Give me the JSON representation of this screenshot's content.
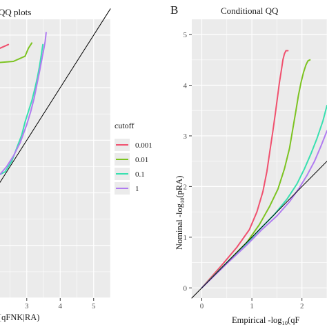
{
  "chart_data": [
    {
      "type": "line",
      "panel_letter": "",
      "title": "QQ plots",
      "xlabel": "[qFNK|RA)",
      "ylabel": "",
      "xticks": [
        "3",
        "4",
        "5"
      ],
      "xlim": [
        2.2,
        5.5
      ],
      "ylim": [
        0,
        5.3
      ],
      "grid": true,
      "background": "#ebebeb",
      "series": [
        {
          "name": "0.001",
          "color": "#f0506e",
          "x": [
            2.2,
            2.45
          ],
          "y": [
            4.75,
            4.82
          ]
        },
        {
          "name": "0.01",
          "color": "#7cc321",
          "x": [
            2.2,
            2.6,
            2.95,
            3.05,
            3.15
          ],
          "y": [
            4.48,
            4.5,
            4.6,
            4.75,
            4.85
          ]
        },
        {
          "name": "0.1",
          "color": "#38e0b0",
          "x": [
            2.2,
            2.35,
            2.55,
            2.7,
            2.85,
            2.95,
            3.05,
            3.15,
            3.25,
            3.32,
            3.38,
            3.43,
            3.48
          ],
          "y": [
            2.35,
            2.4,
            2.6,
            2.85,
            3.1,
            3.35,
            3.55,
            3.75,
            4.0,
            4.2,
            4.4,
            4.6,
            4.82
          ]
        },
        {
          "name": "1",
          "color": "#b07cf0",
          "x": [
            2.2,
            2.4,
            2.6,
            2.8,
            3.0,
            3.12,
            3.22,
            3.3,
            3.38,
            3.44,
            3.5,
            3.55,
            3.58
          ],
          "y": [
            2.35,
            2.5,
            2.7,
            2.95,
            3.3,
            3.55,
            3.8,
            4.05,
            4.3,
            4.5,
            4.7,
            4.88,
            5.05
          ]
        },
        {
          "name": "reference",
          "color": "#000000",
          "x": [
            2.2,
            5.5
          ],
          "y": [
            2.2,
            5.5
          ]
        }
      ]
    },
    {
      "type": "line",
      "panel_letter": "B",
      "title": "Conditional  QQ",
      "xlabel": "Empirical -log",
      "xlabel_sub": "10",
      "xlabel_tail": "(qF",
      "ylabel": "Nominal -log",
      "ylabel_sub": "10",
      "ylabel_tail": "(pRA)",
      "xticks": [
        "0",
        "1",
        "2"
      ],
      "yticks": [
        "0",
        "1",
        "2",
        "3",
        "4",
        "5"
      ],
      "xlim": [
        -0.2,
        2.5
      ],
      "ylim": [
        -0.2,
        5.3
      ],
      "grid": true,
      "background": "#ebebeb",
      "series": [
        {
          "name": "0.001",
          "color": "#f0506e",
          "x": [
            0,
            0.4,
            0.7,
            0.95,
            1.1,
            1.22,
            1.3,
            1.36,
            1.42,
            1.47,
            1.51,
            1.55,
            1.59,
            1.62,
            1.65,
            1.68,
            1.72
          ],
          "y": [
            0,
            0.45,
            0.8,
            1.15,
            1.5,
            1.9,
            2.3,
            2.7,
            3.1,
            3.45,
            3.75,
            4.05,
            4.3,
            4.5,
            4.62,
            4.68,
            4.68
          ]
        },
        {
          "name": "0.01",
          "color": "#7cc321",
          "x": [
            0,
            0.5,
            0.9,
            1.15,
            1.35,
            1.52,
            1.65,
            1.75,
            1.82,
            1.88,
            1.93,
            1.98,
            2.03,
            2.08,
            2.12,
            2.16
          ],
          "y": [
            0,
            0.5,
            0.9,
            1.25,
            1.6,
            1.95,
            2.35,
            2.75,
            3.15,
            3.5,
            3.8,
            4.05,
            4.25,
            4.4,
            4.48,
            4.5
          ]
        },
        {
          "name": "0.1",
          "color": "#38e0b0",
          "x": [
            0,
            0.5,
            0.9,
            1.2,
            1.45,
            1.7,
            1.9,
            2.05,
            2.18,
            2.3,
            2.42,
            2.5
          ],
          "y": [
            0,
            0.5,
            0.88,
            1.2,
            1.45,
            1.75,
            2.05,
            2.35,
            2.65,
            2.95,
            3.3,
            3.6
          ]
        },
        {
          "name": "1",
          "color": "#b07cf0",
          "x": [
            0,
            0.5,
            0.9,
            1.2,
            1.5,
            1.75,
            1.95,
            2.1,
            2.25,
            2.38,
            2.5
          ],
          "y": [
            0,
            0.48,
            0.85,
            1.15,
            1.42,
            1.7,
            1.98,
            2.22,
            2.5,
            2.8,
            3.1
          ]
        },
        {
          "name": "reference",
          "color": "#000000",
          "x": [
            -0.2,
            2.5
          ],
          "y": [
            -0.2,
            2.5
          ]
        }
      ]
    }
  ],
  "legend": {
    "title": "cutoff",
    "placement": "between-panels",
    "items": [
      {
        "label": "0.001",
        "color": "#f0506e"
      },
      {
        "label": "0.01",
        "color": "#7cc321"
      },
      {
        "label": "0.1",
        "color": "#38e0b0"
      },
      {
        "label": "1",
        "color": "#b07cf0"
      }
    ]
  }
}
